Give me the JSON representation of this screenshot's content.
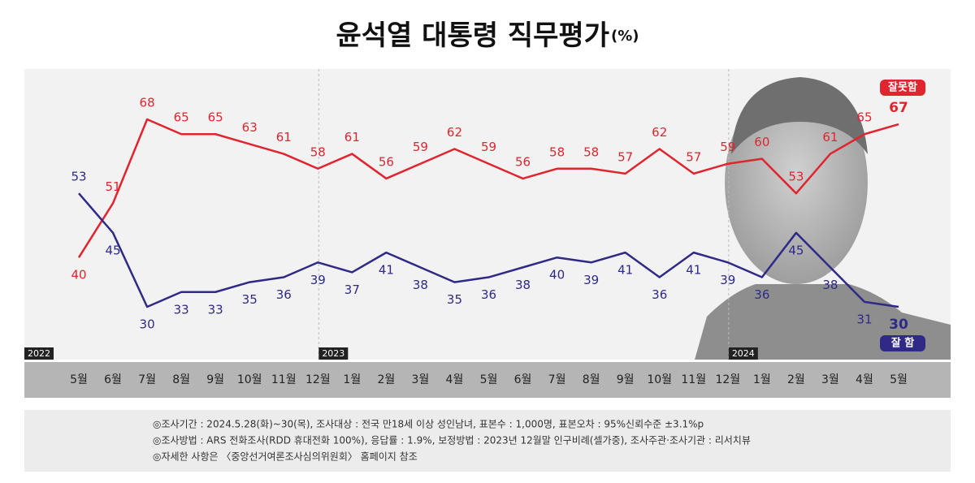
{
  "chart_data": {
    "type": "line",
    "title": "윤석열 대통령 직무평가",
    "title_unit": "(%)",
    "categories": [
      "5월",
      "6월",
      "7월",
      "8월",
      "9월",
      "10월",
      "11월",
      "12월",
      "1월",
      "2월",
      "3월",
      "4월",
      "5월",
      "6월",
      "7월",
      "8월",
      "9월",
      "10월",
      "11월",
      "12월",
      "1월",
      "2월",
      "3월",
      "4월",
      "5월"
    ],
    "year_labels": [
      "2022",
      "2023",
      "2024"
    ],
    "series": [
      {
        "name": "잘못함",
        "color": "#e0252f",
        "values": [
          40,
          51,
          68,
          65,
          65,
          63,
          61,
          58,
          61,
          56,
          59,
          62,
          59,
          56,
          58,
          58,
          57,
          62,
          57,
          59,
          60,
          53,
          61,
          65,
          67
        ]
      },
      {
        "name": "잘 함",
        "color": "#2e2a86",
        "values": [
          53,
          45,
          30,
          33,
          33,
          35,
          36,
          39,
          37,
          41,
          38,
          35,
          36,
          38,
          40,
          39,
          41,
          36,
          41,
          39,
          36,
          45,
          38,
          31,
          30
        ]
      }
    ],
    "notes": [
      "◎조사기간 : 2024.5.28(화)~30(목), 조사대상 : 전국 만18세 이상 성인남녀, 표본수 : 1,000명, 표본오차 : 95%신뢰수준 ±3.1%p",
      "◎조사방법 : ARS 전화조사(RDD 휴대전화 100%), 응답률 : 1.9%, 보정방법 : 2023년 12월말 인구비례(셀가중), 조사주관·조사기관 : 리서치뷰",
      "◎자세한 사항은 〈중앙선거여론조사심의위원회〉 홈페이지 참조"
    ]
  }
}
